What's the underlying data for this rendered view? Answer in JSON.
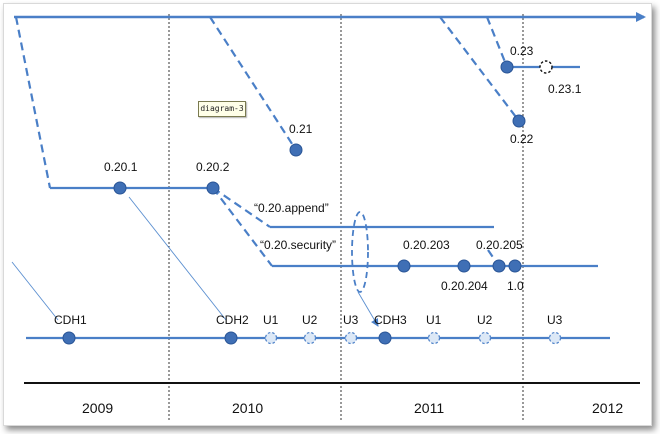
{
  "colors": {
    "line": "#4a7fc7",
    "dot_fill": "#3f6fb5",
    "dot_stroke": "#2a5596",
    "tick": "#333333"
  },
  "tag": "diagram-3",
  "years": [
    "2009",
    "2010",
    "2011",
    "2012"
  ],
  "versions": {
    "v0201": "0.20.1",
    "v0202": "0.20.2",
    "v021": "0.21",
    "v023": "0.23",
    "v0231": "0.23.1",
    "v022": "0.22",
    "append": "“0.20.append”",
    "security": "“0.20.security”",
    "v020203": "0.20.203",
    "v020205": "0.20.205",
    "v020204": "0.20.204",
    "v10": "1.0"
  },
  "cdh": {
    "cdh1": "CDH1",
    "cdh2": "CDH2",
    "u1a": "U1",
    "u2a": "U2",
    "u3a": "U3",
    "cdh3": "CDH3",
    "u1b": "U1",
    "u2b": "U2",
    "u3b": "U3"
  }
}
